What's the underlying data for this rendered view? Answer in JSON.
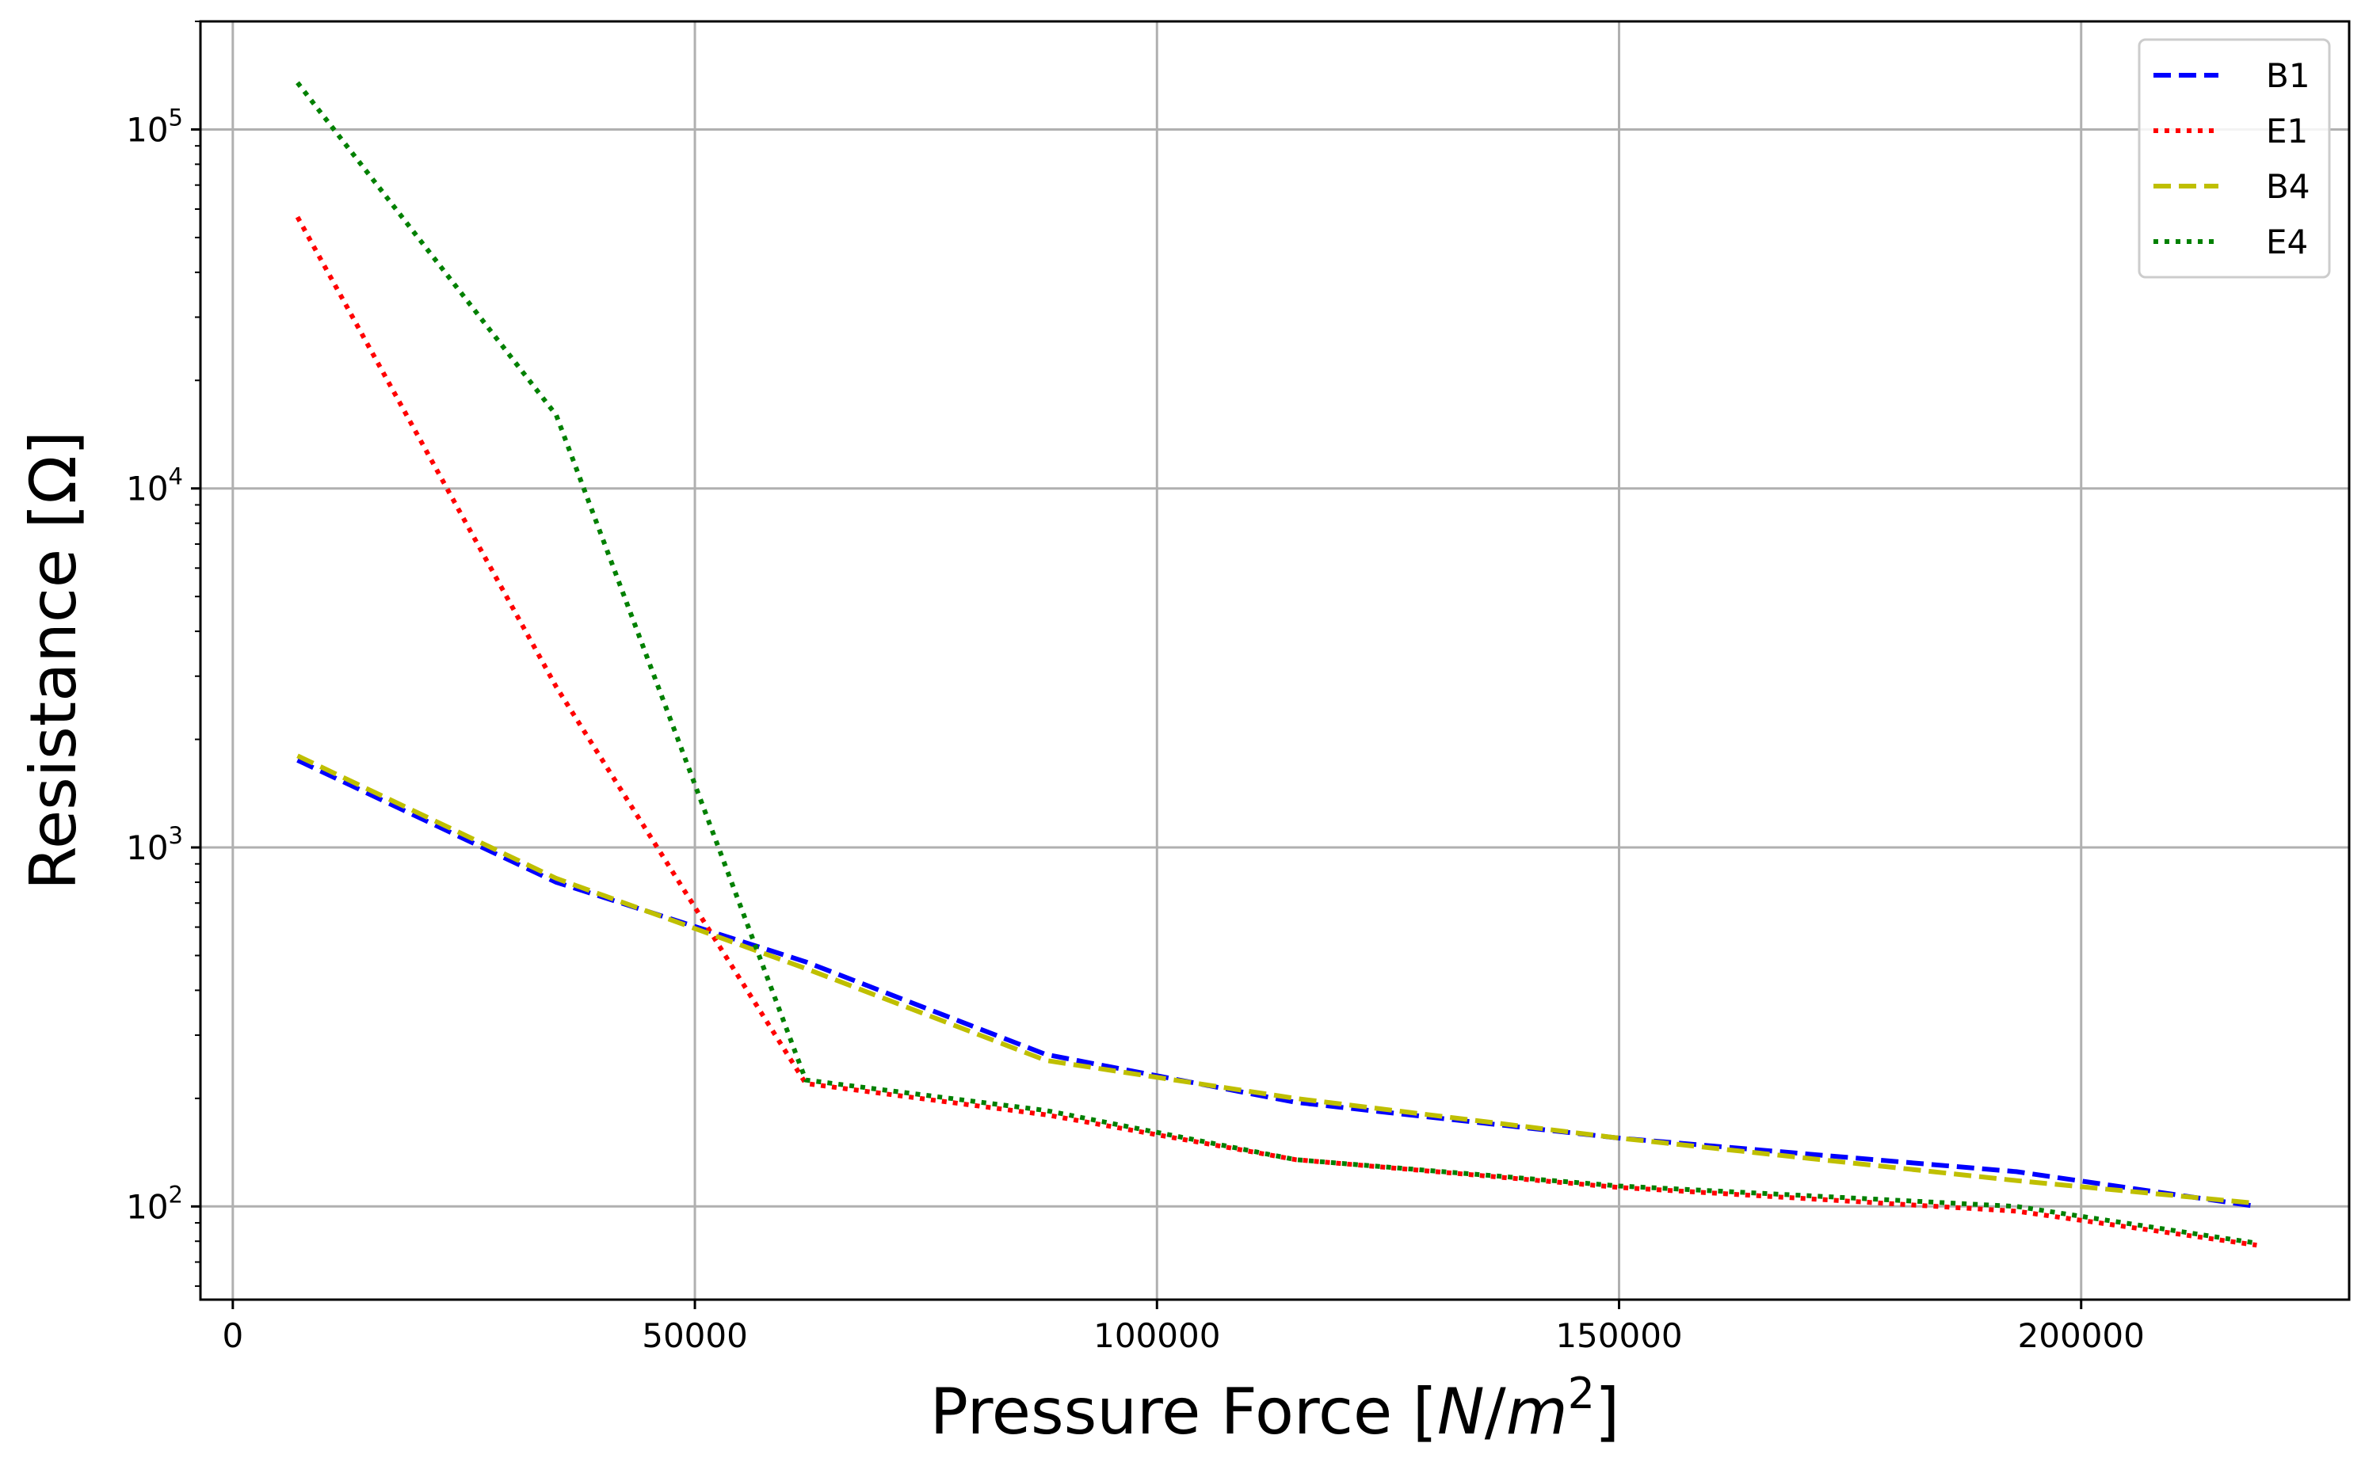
{
  "chart_data": {
    "type": "line",
    "title": "",
    "xlabel": "Pressure Force",
    "xlabel_unit_open": "[",
    "xlabel_unit_N": "N",
    "xlabel_unit_slash": "/",
    "xlabel_unit_m": "m",
    "xlabel_unit_exp": "2",
    "xlabel_unit_close": "]",
    "ylabel": "Resistance [Ω]",
    "xlim": [
      -3500,
      229000
    ],
    "ylim": [
      55,
      200000
    ],
    "yscale": "log",
    "grid": true,
    "legend_position": "top-right",
    "x_ticks": [
      {
        "value": 0,
        "label": "0"
      },
      {
        "value": 50000,
        "label": "50000"
      },
      {
        "value": 100000,
        "label": "100000"
      },
      {
        "value": 150000,
        "label": "150000"
      },
      {
        "value": 200000,
        "label": "200000"
      }
    ],
    "y_ticks": [
      {
        "value": 100,
        "base": "10",
        "exp": "2"
      },
      {
        "value": 1000,
        "base": "10",
        "exp": "3"
      },
      {
        "value": 10000,
        "base": "10",
        "exp": "4"
      },
      {
        "value": 100000,
        "base": "10",
        "exp": "5"
      }
    ],
    "series": [
      {
        "name": "B1",
        "color": "#0000ff",
        "style": "dashed",
        "x": [
          7000,
          35000,
          62000,
          88000,
          115000,
          150000,
          193000,
          219000
        ],
        "y": [
          1750,
          800,
          480,
          265,
          195,
          155,
          125,
          100
        ]
      },
      {
        "name": "E1",
        "color": "#ff0000",
        "style": "dotted",
        "x": [
          7000,
          35000,
          62000,
          88000,
          115000,
          150000,
          193000,
          219000
        ],
        "y": [
          57000,
          2800,
          220,
          180,
          135,
          113,
          97,
          78
        ]
      },
      {
        "name": "B4",
        "color": "#bfbf00",
        "style": "dashed",
        "x": [
          7000,
          35000,
          62000,
          88000,
          115000,
          150000,
          193000,
          219000
        ],
        "y": [
          1800,
          820,
          460,
          255,
          200,
          155,
          118,
          102
        ]
      },
      {
        "name": "E4",
        "color": "#008000",
        "style": "dotted",
        "x": [
          7000,
          35000,
          62000,
          88000,
          115000,
          150000,
          193000,
          219000
        ],
        "y": [
          135000,
          16000,
          225,
          185,
          135,
          114,
          100,
          79
        ]
      }
    ]
  }
}
